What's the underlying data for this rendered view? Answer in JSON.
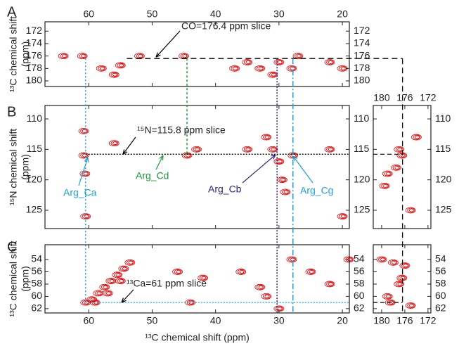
{
  "chart_data": [
    {
      "type": "contour",
      "letter": "A",
      "xlim": [
        66.9,
        18.9
      ],
      "ylim": [
        170.5,
        180.9
      ],
      "xticks": [
        60,
        50,
        40,
        30,
        20
      ],
      "yticks": [
        172,
        174,
        176,
        178,
        180
      ],
      "ylabel": [
        "¹³C chemical shift",
        "(ppm)"
      ],
      "color": "#e00000",
      "slice": {
        "label": "CO=176.4 ppm slice",
        "value": 176.4
      },
      "peaks": {
        "x": [
          64,
          61,
          58,
          56,
          55,
          52,
          45,
          37,
          35,
          33,
          31,
          30,
          28,
          27,
          22,
          20
        ],
        "y": [
          176,
          176,
          178,
          179,
          177.5,
          176,
          176,
          178,
          177,
          178,
          179,
          177,
          178,
          176,
          177,
          178
        ]
      }
    },
    {
      "type": "contour",
      "letter": "B",
      "xlim": [
        66.9,
        18.9
      ],
      "ylim": [
        107.8,
        128.0
      ],
      "xticks": [
        60,
        50,
        40,
        30,
        20
      ],
      "yticks": [
        110,
        115,
        120,
        125
      ],
      "ylabel": [
        "¹⁵N chemical shift",
        "(ppm)"
      ],
      "color": "#e00000",
      "slice": {
        "label": "¹⁵N=115.8 ppm slice",
        "value": 115.8
      },
      "markers": [
        {
          "name": "Arg_Ca",
          "value": 60.5,
          "color": "#1a9fd8"
        },
        {
          "name": "Arg_Cd",
          "value": 44.5,
          "color": "#1a9a3a"
        },
        {
          "name": "Arg_Cb",
          "value": 30.3,
          "color": "#2e1f7e"
        },
        {
          "name": "Arg_Cg",
          "value": 27.8,
          "color": "#1a9fd8"
        }
      ],
      "peaks": {
        "x": [
          60.8,
          60.8,
          60.6,
          60.5,
          56,
          44.5,
          43,
          35,
          31,
          30,
          29.5,
          29,
          27.8,
          22,
          20,
          32
        ],
        "y": [
          112,
          116,
          119,
          126,
          114,
          116,
          115,
          115,
          115,
          117,
          120,
          122,
          116,
          115,
          126,
          113
        ]
      }
    },
    {
      "type": "contour",
      "letter": "C",
      "xlim": [
        66.9,
        18.9
      ],
      "ylim": [
        51.6,
        62.7
      ],
      "xticks": [
        60,
        50,
        40,
        30,
        20
      ],
      "yticks": [
        54,
        56,
        58,
        60,
        62
      ],
      "ylabel": [
        "¹³C chemical shift",
        "(ppm)"
      ],
      "xlabel": "¹³C chemical shift (ppm)",
      "color": "#e00000",
      "slice": {
        "label": "¹³Ca=61 ppm slice",
        "value": 61
      },
      "peaks": {
        "x": [
          60.5,
          59.5,
          58.5,
          57.5,
          56.5,
          55.5,
          54.5,
          53.5,
          59,
          57,
          55,
          46,
          44,
          42,
          32,
          30,
          28,
          25,
          22,
          19,
          36,
          33
        ],
        "y": [
          61,
          60.5,
          59.5,
          58.5,
          57.5,
          56.5,
          55.5,
          54.5,
          61,
          59.5,
          57.5,
          56,
          61,
          57,
          60,
          62,
          54,
          56,
          58,
          54,
          56,
          58.5
        ]
      }
    },
    {
      "type": "contour",
      "xlim": [
        181.45,
        171.5
      ],
      "ylim": [
        107.8,
        128.0
      ],
      "xticks": [
        180,
        176,
        172
      ],
      "yticks": [
        110,
        115,
        120,
        125
      ],
      "color": "#e00000",
      "peaks": {
        "x": [
          177,
          176.5,
          179,
          179.5,
          174,
          175,
          177.5
        ],
        "y": [
          115,
          116,
          119,
          121,
          113,
          125,
          118
        ]
      }
    },
    {
      "type": "contour",
      "xlim": [
        181.45,
        171.5
      ],
      "ylim": [
        51.6,
        62.7
      ],
      "xticks": [
        180,
        176,
        172
      ],
      "yticks": [
        54,
        56,
        58,
        60,
        62
      ],
      "color": "#e00000",
      "peaks": {
        "x": [
          180,
          178,
          176,
          177,
          179,
          175,
          176.5,
          178.5
        ],
        "y": [
          54,
          54.5,
          55,
          58,
          60,
          61.5,
          57,
          61
        ]
      }
    }
  ]
}
